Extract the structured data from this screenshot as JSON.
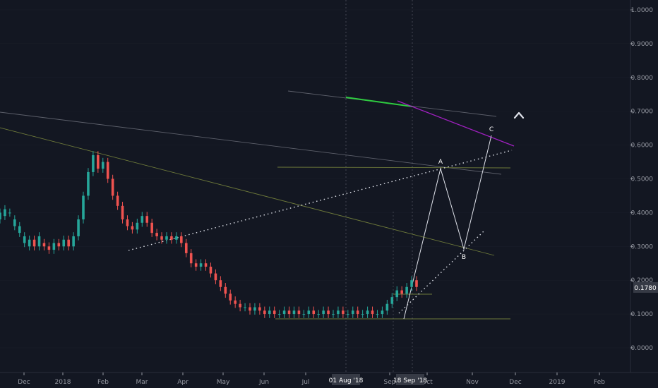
{
  "chart_data": {
    "type": "candlestick",
    "x_ticks": [
      "Dec",
      "2018",
      "Feb",
      "Mar",
      "Apr",
      "May",
      "Jun",
      "Jul",
      "01 Aug '18",
      "Sep",
      "18 Sep '18",
      "Oct",
      "Nov",
      "Dec",
      "2019",
      "Feb"
    ],
    "y_ticks": [
      "1.0000",
      "0.9000",
      "0.8000",
      "0.7000",
      "0.6000",
      "0.5000",
      "0.4000",
      "0.3000",
      "0.2000",
      "0.1000",
      "0.0000"
    ],
    "ylim": [
      -0.07,
      1.03
    ],
    "last_price": "0.1780",
    "crosshair_labels": [
      "01 Aug '18",
      "18 Sep '18"
    ],
    "wave_labels": [
      "A",
      "B",
      "C"
    ],
    "price_path": [
      [
        0.38,
        0.4
      ],
      [
        0.39,
        0.41
      ],
      [
        0.4,
        0.4
      ],
      [
        0.36,
        0.38
      ],
      [
        0.34,
        0.36
      ],
      [
        0.31,
        0.33
      ],
      [
        0.3,
        0.32
      ],
      [
        0.32,
        0.3
      ],
      [
        0.3,
        0.33
      ],
      [
        0.31,
        0.3
      ],
      [
        0.3,
        0.29
      ],
      [
        0.29,
        0.31
      ],
      [
        0.31,
        0.3
      ],
      [
        0.3,
        0.32
      ],
      [
        0.32,
        0.3
      ],
      [
        0.3,
        0.33
      ],
      [
        0.33,
        0.38
      ],
      [
        0.38,
        0.45
      ],
      [
        0.45,
        0.52
      ],
      [
        0.52,
        0.57
      ],
      [
        0.57,
        0.53
      ],
      [
        0.53,
        0.55
      ],
      [
        0.55,
        0.5
      ],
      [
        0.5,
        0.45
      ],
      [
        0.45,
        0.42
      ],
      [
        0.42,
        0.38
      ],
      [
        0.38,
        0.36
      ],
      [
        0.36,
        0.35
      ],
      [
        0.35,
        0.37
      ],
      [
        0.37,
        0.39
      ],
      [
        0.39,
        0.37
      ],
      [
        0.37,
        0.34
      ],
      [
        0.34,
        0.33
      ],
      [
        0.33,
        0.32
      ],
      [
        0.32,
        0.33
      ],
      [
        0.33,
        0.32
      ],
      [
        0.32,
        0.33
      ],
      [
        0.33,
        0.31
      ],
      [
        0.31,
        0.28
      ],
      [
        0.28,
        0.25
      ],
      [
        0.25,
        0.24
      ],
      [
        0.24,
        0.25
      ],
      [
        0.25,
        0.24
      ],
      [
        0.24,
        0.22
      ],
      [
        0.22,
        0.2
      ],
      [
        0.2,
        0.18
      ],
      [
        0.18,
        0.16
      ],
      [
        0.16,
        0.14
      ],
      [
        0.14,
        0.13
      ],
      [
        0.13,
        0.12
      ],
      [
        0.12,
        0.12
      ],
      [
        0.12,
        0.11
      ],
      [
        0.11,
        0.12
      ],
      [
        0.12,
        0.11
      ],
      [
        0.11,
        0.1
      ],
      [
        0.1,
        0.11
      ],
      [
        0.11,
        0.1
      ],
      [
        0.1,
        0.1
      ],
      [
        0.1,
        0.11
      ],
      [
        0.11,
        0.1
      ],
      [
        0.1,
        0.11
      ],
      [
        0.11,
        0.1
      ],
      [
        0.1,
        0.1
      ],
      [
        0.1,
        0.11
      ],
      [
        0.11,
        0.1
      ],
      [
        0.1,
        0.1
      ],
      [
        0.1,
        0.11
      ],
      [
        0.11,
        0.1
      ],
      [
        0.1,
        0.1
      ],
      [
        0.1,
        0.11
      ],
      [
        0.11,
        0.1
      ],
      [
        0.1,
        0.1
      ],
      [
        0.1,
        0.11
      ],
      [
        0.11,
        0.1
      ],
      [
        0.1,
        0.1
      ],
      [
        0.1,
        0.11
      ],
      [
        0.11,
        0.1
      ],
      [
        0.1,
        0.1
      ],
      [
        0.1,
        0.11
      ],
      [
        0.11,
        0.13
      ],
      [
        0.13,
        0.15
      ],
      [
        0.15,
        0.17
      ],
      [
        0.17,
        0.16
      ],
      [
        0.16,
        0.18
      ],
      [
        0.18,
        0.2
      ],
      [
        0.2,
        0.18
      ]
    ],
    "colors": {
      "background": "#131722",
      "bull": "#26a69a",
      "bear": "#ef5350",
      "grid": "#2a2e39",
      "axis_text": "#9598a1",
      "green_segment": "#2ecc40",
      "purple_line": "#a020c0",
      "olive_line": "#6e7a3a",
      "grey_line": "#5d606b",
      "white": "#e0e3eb",
      "price_tag": "#363a45"
    }
  }
}
